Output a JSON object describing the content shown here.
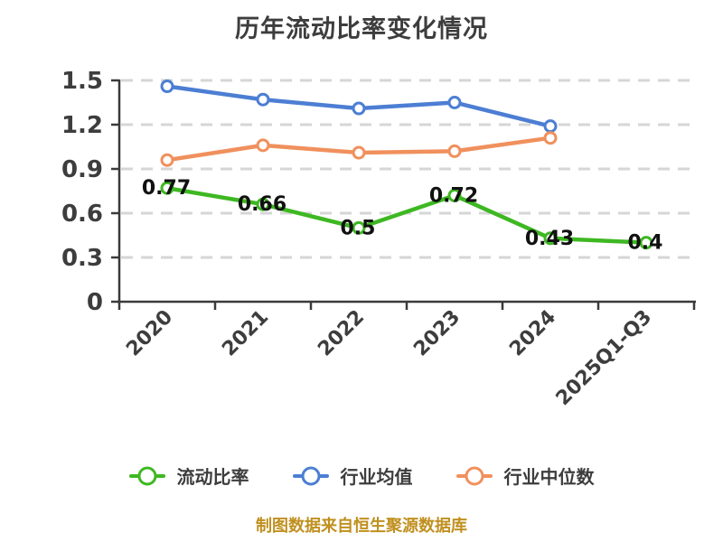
{
  "title": "历年流动比率变化情况",
  "footer": "制图数据来自恒生聚源数据库",
  "colors": {
    "background": "#ffffff",
    "title_text": "#3d3d3d",
    "axis": "#3a3a3a",
    "gridline": "#d6d6d6",
    "value_label": "#111111",
    "footer_text": "#c09020",
    "series_current_ratio": "#3eb822",
    "series_industry_mean": "#4c7ed3",
    "series_industry_median": "#f0905d"
  },
  "chart_data": {
    "type": "line",
    "title": "历年流动比率变化情况",
    "categories": [
      "2020",
      "2021",
      "2022",
      "2023",
      "2024",
      "2025Q1-Q3"
    ],
    "series": [
      {
        "name": "流动比率",
        "color": "#3eb822",
        "values": [
          0.77,
          0.66,
          0.5,
          0.72,
          0.43,
          0.4
        ],
        "show_labels": true
      },
      {
        "name": "行业均值",
        "color": "#4c7ed3",
        "values": [
          1.46,
          1.37,
          1.31,
          1.35,
          1.19,
          null
        ],
        "show_labels": false
      },
      {
        "name": "行业中位数",
        "color": "#f0905d",
        "values": [
          0.96,
          1.06,
          1.01,
          1.02,
          1.11,
          null
        ],
        "show_labels": false
      }
    ],
    "xlabel": "",
    "ylabel": "",
    "ylim": [
      0,
      1.5
    ],
    "ytick_step": 0.3,
    "ytick_labels": [
      "0",
      "0.3",
      "0.6",
      "0.9",
      "1.2",
      "1.5"
    ],
    "grid": "horizontal-dashed",
    "legend_position": "bottom",
    "x_label_rotation_deg": 45
  }
}
